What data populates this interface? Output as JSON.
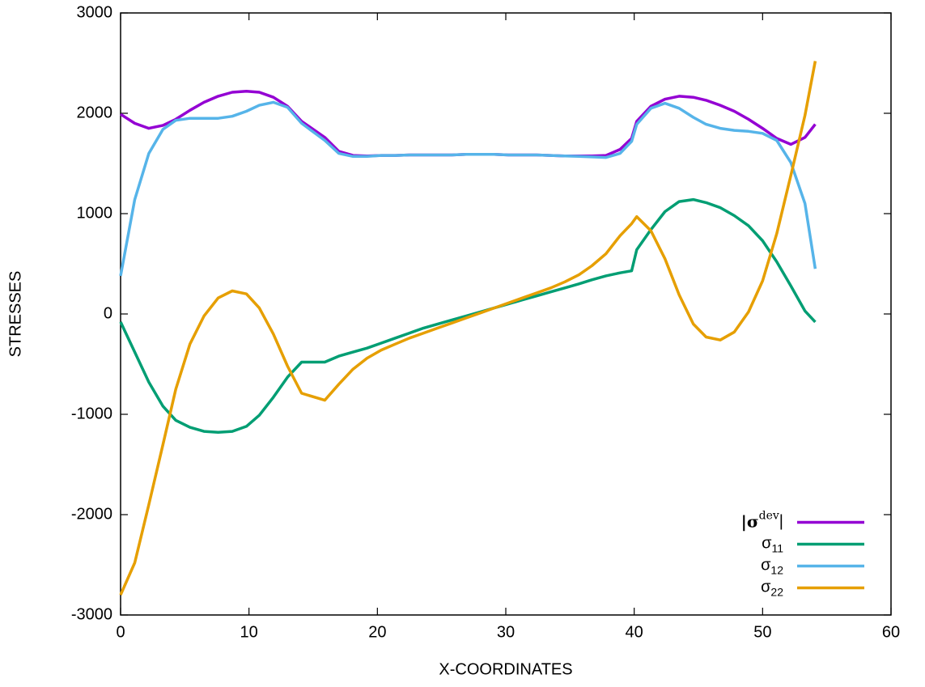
{
  "chart_data": {
    "type": "line",
    "xlabel": "X-COORDINATES",
    "ylabel": "STRESSES",
    "x": [
      0,
      1.1,
      2.2,
      3.3,
      4.3,
      5.4,
      6.5,
      7.6,
      8.7,
      9.8,
      10.8,
      11.9,
      13,
      14.1,
      15.9,
      17,
      18.1,
      19.2,
      20.3,
      21.4,
      22.5,
      23.6,
      24.7,
      25.8,
      26.9,
      28,
      29.1,
      30.2,
      31.3,
      32.4,
      33.5,
      34.6,
      35.7,
      36.7,
      37.8,
      38.9,
      39.8,
      40.2,
      41.3,
      42.4,
      43.5,
      44.6,
      45.6,
      46.7,
      47.8,
      48.9,
      50,
      51.1,
      52.2,
      53.3,
      54.1
    ],
    "series": [
      {
        "name": "|σdev|",
        "color": "#9400d3",
        "values": [
          1990,
          1900,
          1850,
          1880,
          1940,
          2030,
          2110,
          2170,
          2210,
          2220,
          2210,
          2160,
          2070,
          1920,
          1760,
          1620,
          1580,
          1575,
          1580,
          1580,
          1585,
          1585,
          1585,
          1585,
          1590,
          1590,
          1590,
          1585,
          1585,
          1585,
          1580,
          1575,
          1575,
          1575,
          1580,
          1640,
          1750,
          1920,
          2070,
          2140,
          2170,
          2160,
          2130,
          2080,
          2020,
          1940,
          1850,
          1750,
          1690,
          1760,
          1890
        ]
      },
      {
        "name": "σ11",
        "color": "#009e73",
        "values": [
          -80,
          -380,
          -680,
          -920,
          -1060,
          -1130,
          -1170,
          -1180,
          -1170,
          -1120,
          -1010,
          -830,
          -630,
          -480,
          -480,
          -420,
          -380,
          -340,
          -290,
          -240,
          -190,
          -140,
          -100,
          -60,
          -20,
          20,
          60,
          100,
          140,
          180,
          220,
          260,
          300,
          340,
          380,
          410,
          430,
          640,
          840,
          1020,
          1120,
          1140,
          1110,
          1060,
          980,
          880,
          730,
          520,
          280,
          30,
          -80
        ]
      },
      {
        "name": "σ12",
        "color": "#56b4e9",
        "values": [
          380,
          1140,
          1600,
          1840,
          1930,
          1950,
          1950,
          1950,
          1970,
          2020,
          2080,
          2110,
          2060,
          1900,
          1730,
          1600,
          1570,
          1570,
          1580,
          1580,
          1585,
          1585,
          1585,
          1585,
          1590,
          1590,
          1590,
          1585,
          1585,
          1585,
          1580,
          1575,
          1570,
          1565,
          1560,
          1600,
          1720,
          1890,
          2050,
          2100,
          2050,
          1960,
          1890,
          1850,
          1830,
          1820,
          1800,
          1730,
          1510,
          1100,
          450
        ]
      },
      {
        "name": "σ22",
        "color": "#e69f00",
        "values": [
          -2800,
          -2480,
          -1900,
          -1300,
          -750,
          -300,
          -20,
          160,
          230,
          200,
          60,
          -200,
          -520,
          -790,
          -860,
          -700,
          -550,
          -440,
          -360,
          -300,
          -240,
          -190,
          -140,
          -90,
          -40,
          10,
          60,
          110,
          160,
          210,
          260,
          320,
          390,
          480,
          600,
          780,
          900,
          970,
          830,
          550,
          190,
          -100,
          -230,
          -260,
          -180,
          20,
          330,
          800,
          1380,
          1980,
          2520
        ]
      }
    ],
    "xlim": [
      0,
      60
    ],
    "xticks": [
      0,
      10,
      20,
      30,
      40,
      50,
      60
    ],
    "ylim": [
      -3000,
      3000
    ],
    "yticks": [
      -3000,
      -2000,
      -1000,
      0,
      1000,
      2000,
      3000
    ],
    "legend": "bottom right"
  }
}
